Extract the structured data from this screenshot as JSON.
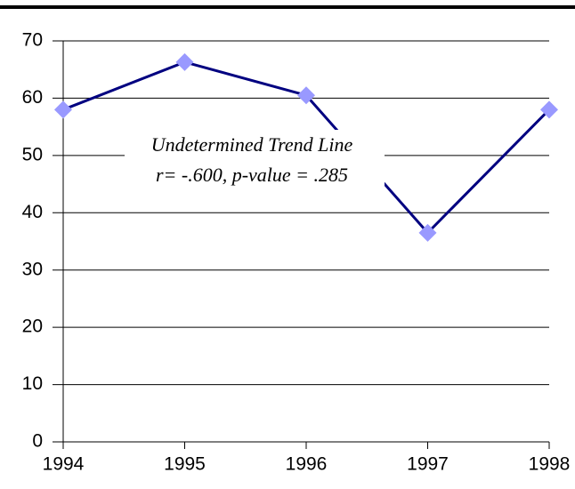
{
  "chart_data": {
    "type": "line",
    "categories": [
      "1994",
      "1995",
      "1996",
      "1997",
      "1998"
    ],
    "series": [
      {
        "color": "#000080",
        "marker_color": "#9999ff",
        "values": [
          58,
          66.3,
          60.5,
          36.5,
          58
        ]
      }
    ],
    "ylim": [
      0,
      70
    ],
    "yticks": [
      0,
      10,
      20,
      30,
      40,
      50,
      60,
      70
    ],
    "grid": true,
    "annotations": [
      "Undetermined Trend Line",
      "r= -.600, p-value = .285"
    ]
  }
}
